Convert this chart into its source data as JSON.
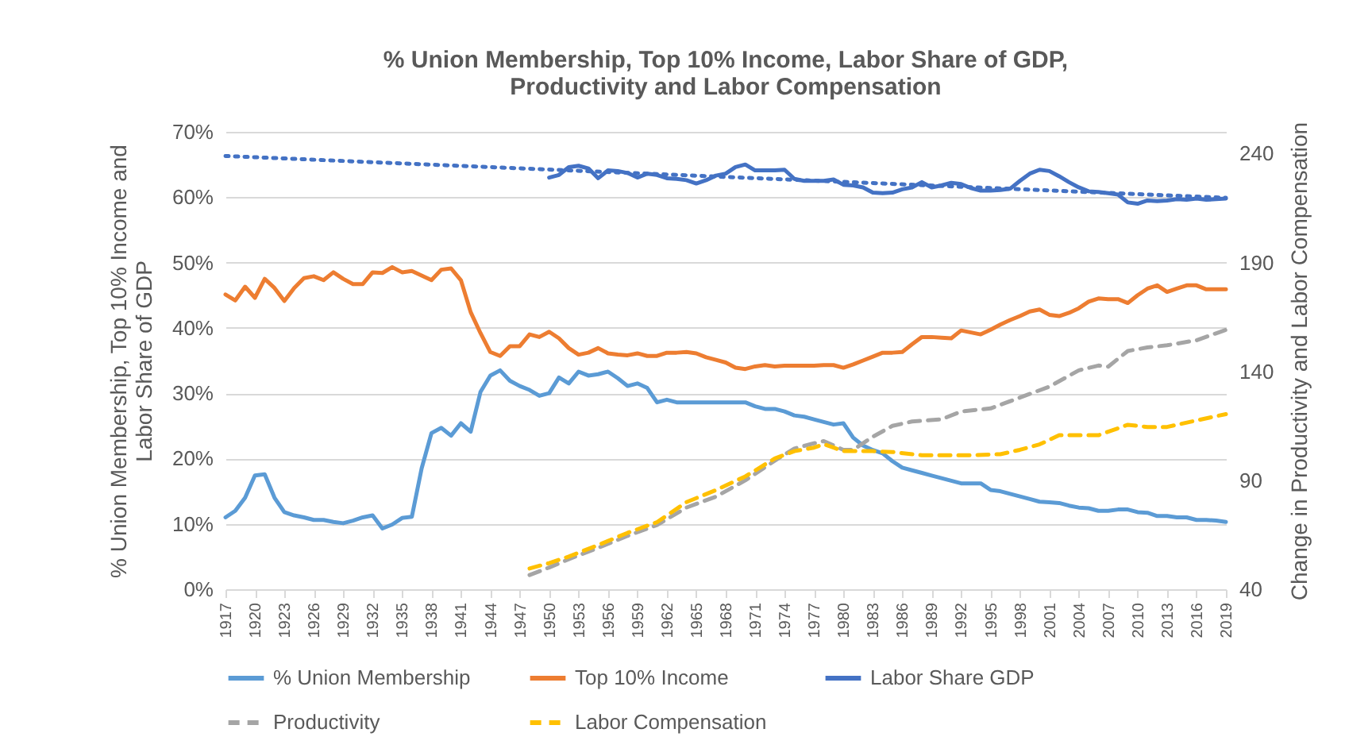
{
  "chart_data": {
    "type": "line",
    "title": "% Union Membership, Top 10% Income, Labor Share of GDP, Productivity and Labor Compensation",
    "ylabel": "% Union Membership, Top 10% Income and Labor Share of GDP",
    "y2label": "Change in Productivity and Labor Compensation",
    "xlim": [
      1917,
      2019
    ],
    "xticks": [
      1917,
      1920,
      1923,
      1926,
      1929,
      1932,
      1935,
      1938,
      1941,
      1944,
      1947,
      1950,
      1953,
      1956,
      1959,
      1962,
      1965,
      1968,
      1971,
      1974,
      1977,
      1980,
      1983,
      1986,
      1989,
      1992,
      1995,
      1998,
      2001,
      2004,
      2007,
      2010,
      2013,
      2016,
      2019
    ],
    "ylim": [
      0,
      70
    ],
    "yticks": [
      {
        "value": 0,
        "label": "0%"
      },
      {
        "value": 10,
        "label": "10%"
      },
      {
        "value": 20,
        "label": "20%"
      },
      {
        "value": 30,
        "label": "30%"
      },
      {
        "value": 40,
        "label": "40%"
      },
      {
        "value": 50,
        "label": "50%"
      },
      {
        "value": 60,
        "label": "60%"
      },
      {
        "value": 70,
        "label": "70%"
      }
    ],
    "y2lim": [
      40,
      250
    ],
    "y2ticks": [
      40,
      90,
      140,
      190,
      240
    ],
    "grid": "y",
    "legend": "bottom",
    "series": [
      {
        "name": "% Union Membership",
        "color": "#5b9bd5",
        "line_style": "solid",
        "x": [
          1917,
          1918,
          1919,
          1920,
          1921,
          1922,
          1923,
          1924,
          1925,
          1926,
          1927,
          1928,
          1929,
          1930,
          1931,
          1932,
          1933,
          1934,
          1935,
          1936,
          1937,
          1938,
          1939,
          1940,
          1941,
          1942,
          1943,
          1944,
          1945,
          1946,
          1947,
          1948,
          1949,
          1950,
          1951,
          1952,
          1953,
          1954,
          1955,
          1956,
          1957,
          1958,
          1959,
          1960,
          1961,
          1962,
          1963,
          1964,
          1965,
          1966,
          1967,
          1968,
          1969,
          1970,
          1971,
          1972,
          1973,
          1974,
          1975,
          1976,
          1977,
          1978,
          1979,
          1980,
          1981,
          1982,
          1983,
          1984,
          1985,
          1986,
          1987,
          1988,
          1989,
          1990,
          1991,
          1992,
          1993,
          1994,
          1995,
          1996,
          1997,
          1998,
          1999,
          2000,
          2001,
          2002,
          2003,
          2004,
          2005,
          2006,
          2007,
          2008,
          2009,
          2010,
          2011,
          2012,
          2013,
          2014,
          2015,
          2016,
          2017,
          2018,
          2019
        ],
        "values": [
          11.0,
          12.0,
          14.0,
          17.4,
          17.6,
          14.0,
          11.8,
          11.3,
          11.0,
          10.6,
          10.6,
          10.3,
          10.1,
          10.5,
          11.0,
          11.3,
          9.3,
          9.9,
          10.9,
          11.1,
          18.5,
          23.9,
          24.7,
          23.5,
          25.4,
          24.1,
          30.2,
          32.7,
          33.5,
          31.9,
          31.1,
          30.5,
          29.6,
          30.0,
          32.4,
          31.5,
          33.3,
          32.7,
          32.9,
          33.3,
          32.3,
          31.1,
          31.5,
          30.8,
          28.6,
          29.0,
          28.6,
          28.6,
          28.6,
          28.6,
          28.6,
          28.6,
          28.6,
          28.6,
          28.0,
          27.6,
          27.6,
          27.2,
          26.6,
          26.4,
          26.0,
          25.6,
          25.2,
          25.4,
          23.2,
          22.0,
          21.3,
          20.8,
          19.6,
          18.6,
          18.2,
          17.8,
          17.4,
          17.0,
          16.6,
          16.2,
          16.2,
          16.2,
          15.2,
          15.0,
          14.6,
          14.2,
          13.8,
          13.4,
          13.3,
          13.2,
          12.8,
          12.5,
          12.4,
          12.0,
          12.0,
          12.2,
          12.2,
          11.8,
          11.7,
          11.2,
          11.2,
          11.0,
          11.0,
          10.6,
          10.6,
          10.5,
          10.3
        ]
      },
      {
        "name": "Top 10% Income",
        "color": "#ed7d31",
        "line_style": "solid",
        "x": [
          1917,
          1918,
          1919,
          1920,
          1921,
          1922,
          1923,
          1924,
          1925,
          1926,
          1927,
          1928,
          1929,
          1930,
          1931,
          1932,
          1933,
          1934,
          1935,
          1936,
          1937,
          1938,
          1939,
          1940,
          1941,
          1942,
          1943,
          1944,
          1945,
          1946,
          1947,
          1948,
          1949,
          1950,
          1951,
          1952,
          1953,
          1954,
          1955,
          1956,
          1957,
          1958,
          1959,
          1960,
          1961,
          1962,
          1963,
          1964,
          1965,
          1966,
          1967,
          1968,
          1969,
          1970,
          1971,
          1972,
          1973,
          1974,
          1975,
          1976,
          1977,
          1978,
          1979,
          1980,
          1981,
          1982,
          1983,
          1984,
          1985,
          1986,
          1987,
          1988,
          1989,
          1990,
          1991,
          1992,
          1993,
          1994,
          1995,
          1996,
          1997,
          1998,
          1999,
          2000,
          2001,
          2002,
          2003,
          2004,
          2005,
          2006,
          2007,
          2008,
          2009,
          2010,
          2011,
          2012,
          2013,
          2014,
          2015,
          2016,
          2017,
          2018,
          2019
        ],
        "values": [
          45.1,
          44.2,
          46.3,
          44.6,
          47.5,
          46.1,
          44.1,
          46.1,
          47.6,
          47.9,
          47.3,
          48.5,
          47.5,
          46.7,
          46.7,
          48.5,
          48.4,
          49.3,
          48.5,
          48.7,
          48.0,
          47.3,
          48.9,
          49.1,
          47.3,
          42.4,
          39.2,
          36.3,
          35.7,
          37.2,
          37.2,
          39.0,
          38.6,
          39.4,
          38.4,
          36.9,
          35.9,
          36.2,
          36.9,
          36.1,
          35.9,
          35.8,
          36.1,
          35.7,
          35.7,
          36.2,
          36.2,
          36.3,
          36.1,
          35.5,
          35.1,
          34.7,
          33.9,
          33.7,
          34.1,
          34.3,
          34.1,
          34.2,
          34.2,
          34.2,
          34.2,
          34.3,
          34.3,
          33.9,
          34.4,
          35.0,
          35.6,
          36.2,
          36.2,
          36.3,
          37.5,
          38.6,
          38.6,
          38.5,
          38.4,
          39.6,
          39.3,
          39.0,
          39.7,
          40.5,
          41.2,
          41.8,
          42.5,
          42.8,
          42.0,
          41.8,
          42.3,
          43.0,
          44.0,
          44.5,
          44.4,
          44.4,
          43.8,
          45.0,
          46.0,
          46.5,
          45.5,
          46.0,
          46.5,
          46.5,
          45.9,
          45.9,
          45.9
        ]
      },
      {
        "name": "Labor Share GDP",
        "color": "#4472c4",
        "line_style": "solid",
        "x": [
          1950,
          1951,
          1952,
          1953,
          1954,
          1955,
          1956,
          1957,
          1958,
          1959,
          1960,
          1961,
          1962,
          1963,
          1964,
          1965,
          1966,
          1967,
          1968,
          1969,
          1970,
          1971,
          1972,
          1973,
          1974,
          1975,
          1976,
          1977,
          1978,
          1979,
          1980,
          1981,
          1982,
          1983,
          1984,
          1985,
          1986,
          1987,
          1988,
          1989,
          1990,
          1991,
          1992,
          1993,
          1994,
          1995,
          1996,
          1997,
          1998,
          1999,
          2000,
          2001,
          2002,
          2003,
          2004,
          2005,
          2006,
          2007,
          2008,
          2009,
          2010,
          2011,
          2012,
          2013,
          2014,
          2015,
          2016,
          2017,
          2018,
          2019
        ],
        "values": [
          63.0,
          63.4,
          64.6,
          64.8,
          64.4,
          62.9,
          64.1,
          64.0,
          63.7,
          63.0,
          63.6,
          63.4,
          62.9,
          62.8,
          62.6,
          62.1,
          62.6,
          63.3,
          63.6,
          64.6,
          65.0,
          64.1,
          64.1,
          64.1,
          64.2,
          62.8,
          62.5,
          62.5,
          62.5,
          62.7,
          61.9,
          61.8,
          61.5,
          60.7,
          60.6,
          60.7,
          61.2,
          61.5,
          62.3,
          61.5,
          61.8,
          62.2,
          62.0,
          61.4,
          61.0,
          61.0,
          61.1,
          61.3,
          62.5,
          63.6,
          64.2,
          64.0,
          63.2,
          62.3,
          61.5,
          60.9,
          60.8,
          60.6,
          60.4,
          59.2,
          59.0,
          59.5,
          59.4,
          59.5,
          59.7,
          59.6,
          59.8,
          59.6,
          59.7,
          59.8
        ]
      },
      {
        "type": "line",
        "color": "#4472c4",
        "line_style": "dotted",
        "x": [
          1917,
          2019
        ],
        "values": [
          66.3,
          59.9
        ]
      },
      {
        "name": "Productivity",
        "color": "#a5a5a5",
        "line_style": "dashed",
        "axis": "y2",
        "x": [
          1948,
          1950,
          1952,
          1955,
          1958,
          1961,
          1964,
          1967,
          1970,
          1973,
          1975,
          1977,
          1978,
          1979,
          1980,
          1981,
          1983,
          1985,
          1987,
          1990,
          1992,
          1995,
          1998,
          2001,
          2004,
          2006,
          2007,
          2009,
          2011,
          2013,
          2016,
          2019
        ],
        "values": [
          46.5,
          50,
          53.8,
          59,
          64.5,
          69.5,
          77.5,
          82.5,
          90,
          99,
          104.6,
          107,
          108,
          106,
          104,
          104,
          110,
          115,
          117,
          118,
          121.6,
          123,
          128,
          133,
          140.5,
          142.7,
          142.2,
          149.4,
          151,
          152,
          154.3,
          159.1
        ]
      },
      {
        "name": "Labor Compensation",
        "color": "#ffc000",
        "line_style": "dashed",
        "axis": "y2",
        "x": [
          1948,
          1950,
          1952,
          1955,
          1958,
          1961,
          1964,
          1967,
          1970,
          1973,
          1975,
          1977,
          1978,
          1979,
          1980,
          1983,
          1985,
          1988,
          1993,
          1996,
          1998,
          2000,
          2002,
          2006,
          2009,
          2011,
          2013,
          2016,
          2019
        ],
        "values": [
          49.5,
          52,
          55,
          60.3,
          65.9,
          70.8,
          80,
          85.5,
          91.8,
          100,
          103.4,
          105,
          106.6,
          105,
          103.4,
          103.4,
          103,
          101.5,
          101.5,
          102,
          104,
          106.5,
          110.7,
          110.7,
          115.5,
          114.5,
          114.5,
          117.5,
          120.4
        ]
      }
    ]
  }
}
